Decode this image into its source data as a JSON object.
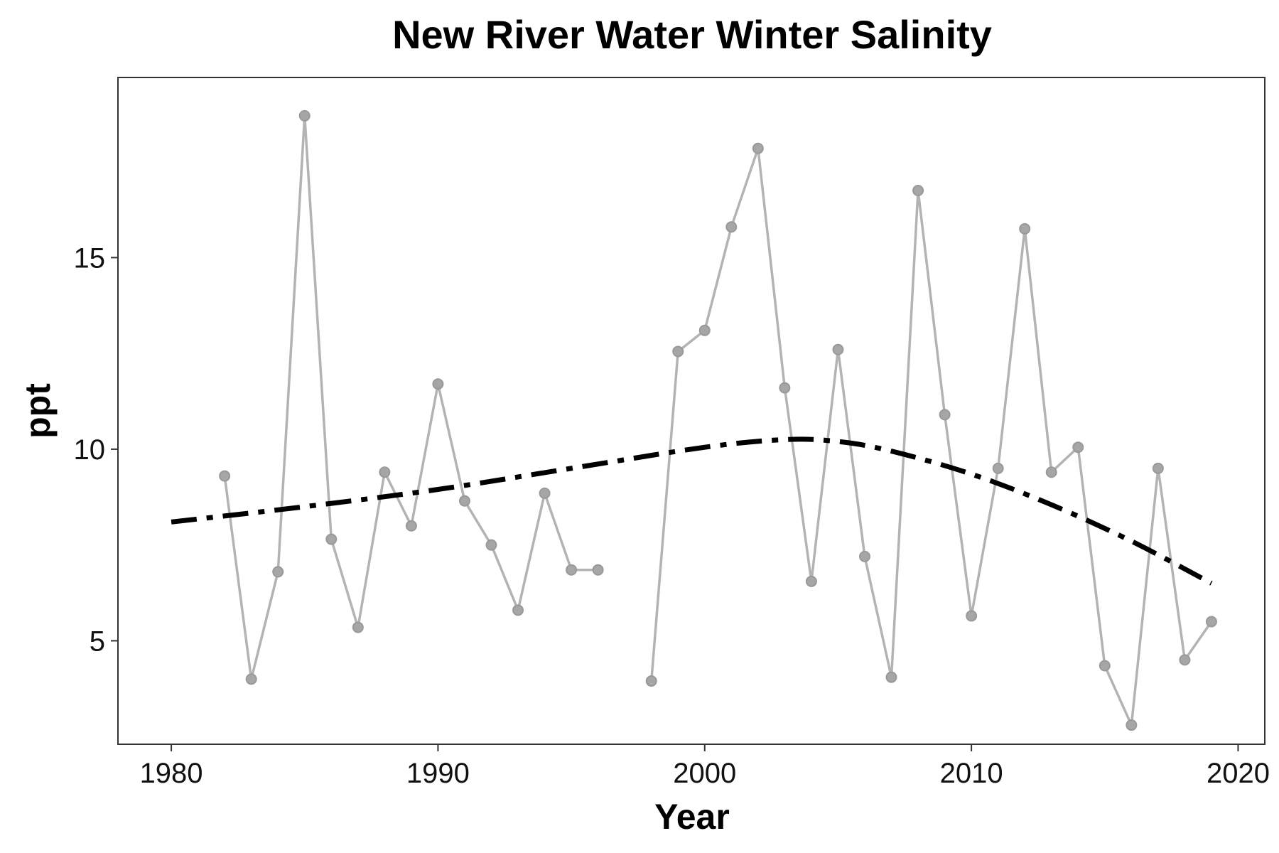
{
  "chart_data": {
    "type": "line",
    "title": "New River Water Winter Salinity",
    "xlabel": "Year",
    "ylabel": "ppt",
    "xlim": [
      1978,
      2021
    ],
    "ylim": [
      2.3,
      19.7
    ],
    "xticks": [
      1980,
      1990,
      2000,
      2010,
      2020
    ],
    "yticks": [
      5,
      10,
      15
    ],
    "grid": false,
    "legend": "none",
    "series": [
      {
        "style": "gray line with points",
        "color": "#b3b3b3",
        "points": [
          {
            "x": 1982,
            "y": 9.3
          },
          {
            "x": 1983,
            "y": 4.0
          },
          {
            "x": 1984,
            "y": 6.8
          },
          {
            "x": 1985,
            "y": 18.7
          },
          {
            "x": 1986,
            "y": 7.65
          },
          {
            "x": 1987,
            "y": 5.35
          },
          {
            "x": 1988,
            "y": 9.4
          },
          {
            "x": 1989,
            "y": 8.0
          },
          {
            "x": 1990,
            "y": 11.7
          },
          {
            "x": 1991,
            "y": 8.65
          },
          {
            "x": 1992,
            "y": 7.5
          },
          {
            "x": 1993,
            "y": 5.8
          },
          {
            "x": 1994,
            "y": 8.85
          },
          {
            "x": 1995,
            "y": 6.85
          },
          {
            "x": 1996,
            "y": 6.85
          },
          {
            "x": 1997,
            "y": null
          },
          {
            "x": 1998,
            "y": 3.95
          },
          {
            "x": 1999,
            "y": 12.55
          },
          {
            "x": 2000,
            "y": 13.1
          },
          {
            "x": 2001,
            "y": 15.8
          },
          {
            "x": 2002,
            "y": 17.85
          },
          {
            "x": 2003,
            "y": 11.6
          },
          {
            "x": 2004,
            "y": 6.55
          },
          {
            "x": 2005,
            "y": 12.6
          },
          {
            "x": 2006,
            "y": 7.2
          },
          {
            "x": 2007,
            "y": 4.05
          },
          {
            "x": 2008,
            "y": 16.75
          },
          {
            "x": 2009,
            "y": 10.9
          },
          {
            "x": 2010,
            "y": 5.65
          },
          {
            "x": 2011,
            "y": 9.5
          },
          {
            "x": 2012,
            "y": 15.75
          },
          {
            "x": 2013,
            "y": 9.4
          },
          {
            "x": 2014,
            "y": 10.05
          },
          {
            "x": 2015,
            "y": 4.35
          },
          {
            "x": 2016,
            "y": 2.8
          },
          {
            "x": 2017,
            "y": 9.5
          },
          {
            "x": 2018,
            "y": 4.5
          },
          {
            "x": 2019,
            "y": 5.5
          }
        ]
      },
      {
        "style": "black dash-dot trend",
        "color": "#000000",
        "points": [
          {
            "x": 1980,
            "y": 8.1
          },
          {
            "x": 1985,
            "y": 8.5
          },
          {
            "x": 1990,
            "y": 8.95
          },
          {
            "x": 1995,
            "y": 9.5
          },
          {
            "x": 2000,
            "y": 10.05
          },
          {
            "x": 2003,
            "y": 10.25
          },
          {
            "x": 2005,
            "y": 10.2
          },
          {
            "x": 2007,
            "y": 9.95
          },
          {
            "x": 2010,
            "y": 9.35
          },
          {
            "x": 2013,
            "y": 8.55
          },
          {
            "x": 2016,
            "y": 7.6
          },
          {
            "x": 2019,
            "y": 6.5
          }
        ]
      }
    ]
  }
}
